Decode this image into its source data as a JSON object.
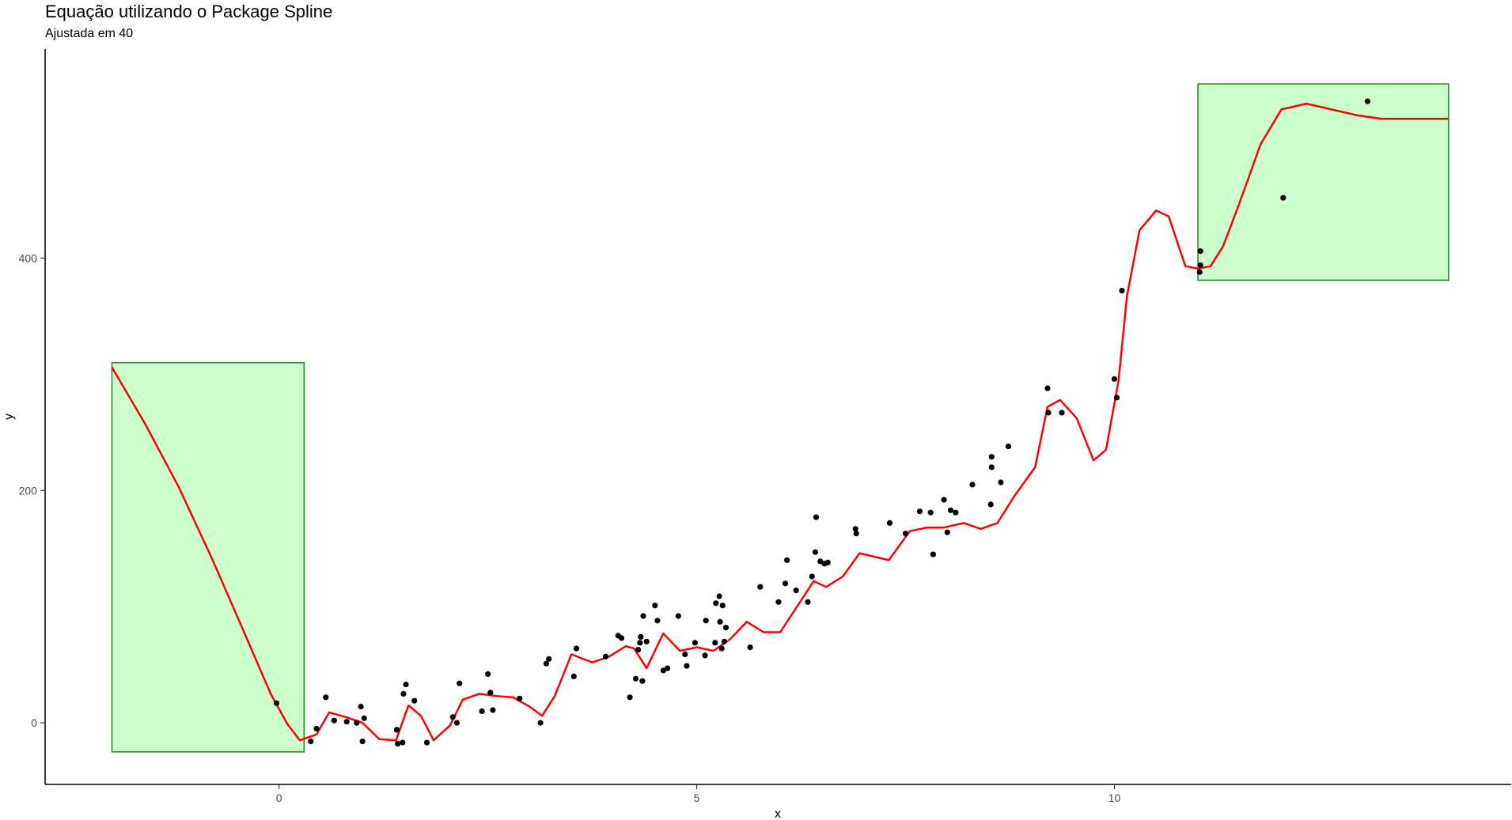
{
  "chart_data": {
    "type": "scatter",
    "title": "Equação utilizando o Package Spline",
    "subtitle": "Ajustada em 40",
    "xlabel": "x",
    "ylabel": "y",
    "xlim": [
      -2.8,
      14.75
    ],
    "ylim": [
      -53,
      580
    ],
    "x_ticks": [
      0,
      5,
      10
    ],
    "y_ticks": [
      0,
      200,
      400
    ],
    "grid": false,
    "colors": {
      "line": "#ff0000",
      "points": "#000000",
      "box_fill": "#ccffcc",
      "box_stroke": "#1a8a1a"
    },
    "highlight_boxes": [
      {
        "x": [
          -2.0,
          0.3
        ],
        "y": [
          -25,
          310
        ]
      },
      {
        "x": [
          11.0,
          14.0
        ],
        "y": [
          381,
          550
        ]
      }
    ],
    "points": [
      [
        -0.03,
        17
      ],
      [
        0.38,
        -16
      ],
      [
        0.45,
        -5
      ],
      [
        0.56,
        22
      ],
      [
        0.66,
        2
      ],
      [
        0.81,
        1
      ],
      [
        0.93,
        0
      ],
      [
        0.98,
        14
      ],
      [
        1.0,
        -16
      ],
      [
        1.02,
        4
      ],
      [
        1.41,
        -6
      ],
      [
        1.42,
        -18
      ],
      [
        1.48,
        -17
      ],
      [
        1.49,
        25
      ],
      [
        1.52,
        33
      ],
      [
        1.62,
        19
      ],
      [
        1.77,
        -17
      ],
      [
        2.08,
        5
      ],
      [
        2.13,
        0
      ],
      [
        2.16,
        34
      ],
      [
        2.43,
        10
      ],
      [
        2.5,
        42
      ],
      [
        2.53,
        26
      ],
      [
        2.56,
        11
      ],
      [
        2.88,
        21
      ],
      [
        3.13,
        0
      ],
      [
        3.2,
        51
      ],
      [
        3.23,
        55
      ],
      [
        3.53,
        40
      ],
      [
        3.56,
        64
      ],
      [
        3.91,
        57
      ],
      [
        4.06,
        75
      ],
      [
        4.1,
        73
      ],
      [
        4.2,
        22
      ],
      [
        4.27,
        38
      ],
      [
        4.3,
        63
      ],
      [
        4.32,
        69
      ],
      [
        4.33,
        74
      ],
      [
        4.35,
        36
      ],
      [
        4.36,
        92
      ],
      [
        4.4,
        70
      ],
      [
        4.5,
        101
      ],
      [
        4.53,
        88
      ],
      [
        4.6,
        45
      ],
      [
        4.65,
        47
      ],
      [
        4.78,
        92
      ],
      [
        4.86,
        59
      ],
      [
        4.88,
        49
      ],
      [
        4.98,
        69
      ],
      [
        5.1,
        58
      ],
      [
        5.11,
        88
      ],
      [
        5.22,
        69
      ],
      [
        5.23,
        103
      ],
      [
        5.27,
        109
      ],
      [
        5.28,
        87
      ],
      [
        5.31,
        101
      ],
      [
        5.3,
        64
      ],
      [
        5.33,
        70
      ],
      [
        5.35,
        82
      ],
      [
        5.64,
        65
      ],
      [
        5.76,
        117
      ],
      [
        5.98,
        104
      ],
      [
        6.06,
        120
      ],
      [
        6.08,
        140
      ],
      [
        6.19,
        114
      ],
      [
        6.33,
        104
      ],
      [
        6.38,
        126
      ],
      [
        6.42,
        147
      ],
      [
        6.43,
        177
      ],
      [
        6.48,
        139
      ],
      [
        6.53,
        137
      ],
      [
        6.57,
        138
      ],
      [
        6.9,
        167
      ],
      [
        6.91,
        163
      ],
      [
        7.31,
        172
      ],
      [
        7.5,
        163
      ],
      [
        7.67,
        182
      ],
      [
        7.8,
        181
      ],
      [
        7.83,
        145
      ],
      [
        7.96,
        192
      ],
      [
        8.0,
        164
      ],
      [
        8.04,
        183
      ],
      [
        8.1,
        181
      ],
      [
        8.3,
        205
      ],
      [
        8.52,
        188
      ],
      [
        8.53,
        220
      ],
      [
        8.53,
        229
      ],
      [
        8.64,
        207
      ],
      [
        8.73,
        238
      ],
      [
        9.2,
        288
      ],
      [
        9.21,
        267
      ],
      [
        9.37,
        267
      ],
      [
        10.0,
        296
      ],
      [
        10.03,
        280
      ],
      [
        10.09,
        372
      ],
      [
        11.02,
        388
      ],
      [
        11.03,
        394
      ],
      [
        11.03,
        406
      ],
      [
        12.02,
        452
      ],
      [
        13.03,
        535
      ]
    ],
    "series": [
      {
        "type": "line",
        "x": [
          -2.0,
          -1.6,
          -1.2,
          -0.8,
          -0.4,
          -0.1,
          0.1,
          0.25,
          0.45,
          0.6,
          0.8,
          1.0,
          1.2,
          1.4,
          1.55,
          1.7,
          1.85,
          2.05,
          2.2,
          2.4,
          2.6,
          2.8,
          3.0,
          3.15,
          3.3,
          3.5,
          3.75,
          3.95,
          4.15,
          4.25,
          4.4,
          4.6,
          4.8,
          5.0,
          5.2,
          5.4,
          5.6,
          5.8,
          6.0,
          6.2,
          6.4,
          6.55,
          6.75,
          6.95,
          7.3,
          7.55,
          7.75,
          7.95,
          8.2,
          8.4,
          8.6,
          8.8,
          9.05,
          9.2,
          9.35,
          9.55,
          9.75,
          9.9,
          10.05,
          10.15,
          10.3,
          10.5,
          10.65,
          10.85,
          11.0,
          11.15,
          11.3,
          11.5,
          11.75,
          12.0,
          12.3,
          12.6,
          12.9,
          13.2,
          13.6,
          14.0
        ],
        "y": [
          306,
          257,
          203,
          141,
          75,
          25,
          -1,
          -15,
          -10,
          9,
          5,
          0,
          -14,
          -15,
          15,
          6,
          -15,
          -2,
          20,
          25,
          23,
          22,
          14,
          6,
          23,
          59,
          52,
          57,
          66,
          64,
          47,
          77,
          62,
          65,
          62,
          72,
          87,
          78,
          78,
          100,
          122,
          117,
          126,
          146,
          140,
          165,
          168,
          168,
          172,
          167,
          172,
          195,
          220,
          272,
          278,
          262,
          226,
          235,
          295,
          367,
          424,
          441,
          436,
          393,
          391,
          393,
          410,
          448,
          498,
          528,
          533,
          528,
          523,
          520,
          520,
          520
        ],
        "color": "#ff0000"
      }
    ]
  }
}
